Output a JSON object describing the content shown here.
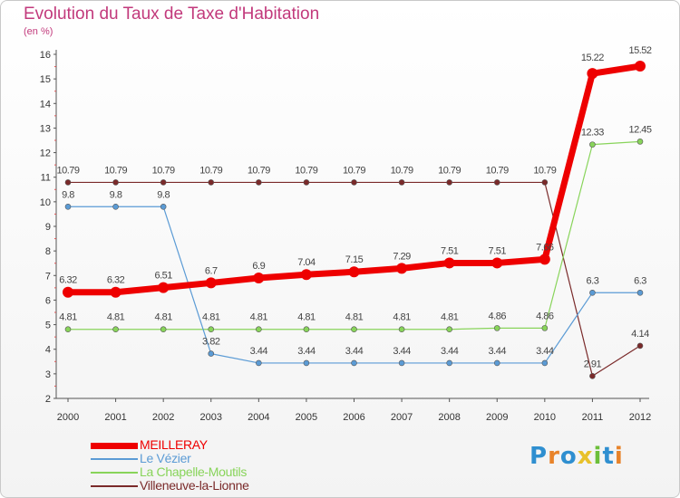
{
  "chart_data": {
    "type": "line",
    "title": "Evolution du Taux de Taxe d'Habitation",
    "subtitle": "(en %)",
    "xlabel": "",
    "ylabel": "",
    "x": [
      "2000",
      "2001",
      "2002",
      "2003",
      "2004",
      "2005",
      "2006",
      "2007",
      "2008",
      "2009",
      "2010",
      "2011",
      "2012"
    ],
    "ylim": [
      2,
      16
    ],
    "yticks": [
      "2",
      "3",
      "4",
      "5",
      "6",
      "7",
      "8",
      "9",
      "10",
      "11",
      "12",
      "13",
      "14",
      "15",
      "16"
    ],
    "grid": false,
    "legend_position": "bottom-left",
    "series": [
      {
        "name": "MEILLERAY",
        "color": "#ee0000",
        "values": [
          6.32,
          6.32,
          6.51,
          6.7,
          6.9,
          7.04,
          7.15,
          7.29,
          7.51,
          7.51,
          7.66,
          15.22,
          15.52
        ],
        "labels": [
          "6.32",
          "6.32",
          "6.51",
          "6.7",
          "6.9",
          "7.04",
          "7.15",
          "7.29",
          "7.51",
          "7.51",
          "7.66",
          "15.22",
          "15.52"
        ]
      },
      {
        "name": "Le Vézier",
        "color": "#5b9bd5",
        "values": [
          9.8,
          9.8,
          9.8,
          3.82,
          3.44,
          3.44,
          3.44,
          3.44,
          3.44,
          3.44,
          3.44,
          6.3,
          6.3
        ],
        "labels": [
          "9.8",
          "9.8",
          "9.8",
          "3.82",
          "3.44",
          "3.44",
          "3.44",
          "3.44",
          "3.44",
          "3.44",
          "3.44",
          "6.3",
          "6.3"
        ]
      },
      {
        "name": "La Chapelle-Moutils",
        "color": "#88d45a",
        "values": [
          4.81,
          4.81,
          4.81,
          4.81,
          4.81,
          4.81,
          4.81,
          4.81,
          4.81,
          4.86,
          4.86,
          12.33,
          12.45
        ],
        "labels": [
          "4.81",
          "4.81",
          "4.81",
          "4.81",
          "4.81",
          "4.81",
          "4.81",
          "4.81",
          "4.81",
          "4.86",
          "4.86",
          "12.33",
          "12.45"
        ]
      },
      {
        "name": "Villeneuve-la-Lionne",
        "color": "#7a2a2a",
        "values": [
          10.79,
          10.79,
          10.79,
          10.79,
          10.79,
          10.79,
          10.79,
          10.79,
          10.79,
          10.79,
          10.79,
          2.91,
          4.14
        ],
        "labels": [
          "10.79",
          "10.79",
          "10.79",
          "10.79",
          "10.79",
          "10.79",
          "10.79",
          "10.79",
          "10.79",
          "10.79",
          "10.79",
          "2.91",
          "4.14"
        ]
      }
    ]
  },
  "logo": {
    "text_letters": [
      "P",
      "r",
      "o",
      "x",
      "i",
      "t",
      "i"
    ],
    "colors": [
      "#2f8fd0",
      "#e8832a",
      "#2f8fd0",
      "#e8c12a",
      "#6cbf3a",
      "#2f8fd0",
      "#e8832a"
    ]
  }
}
